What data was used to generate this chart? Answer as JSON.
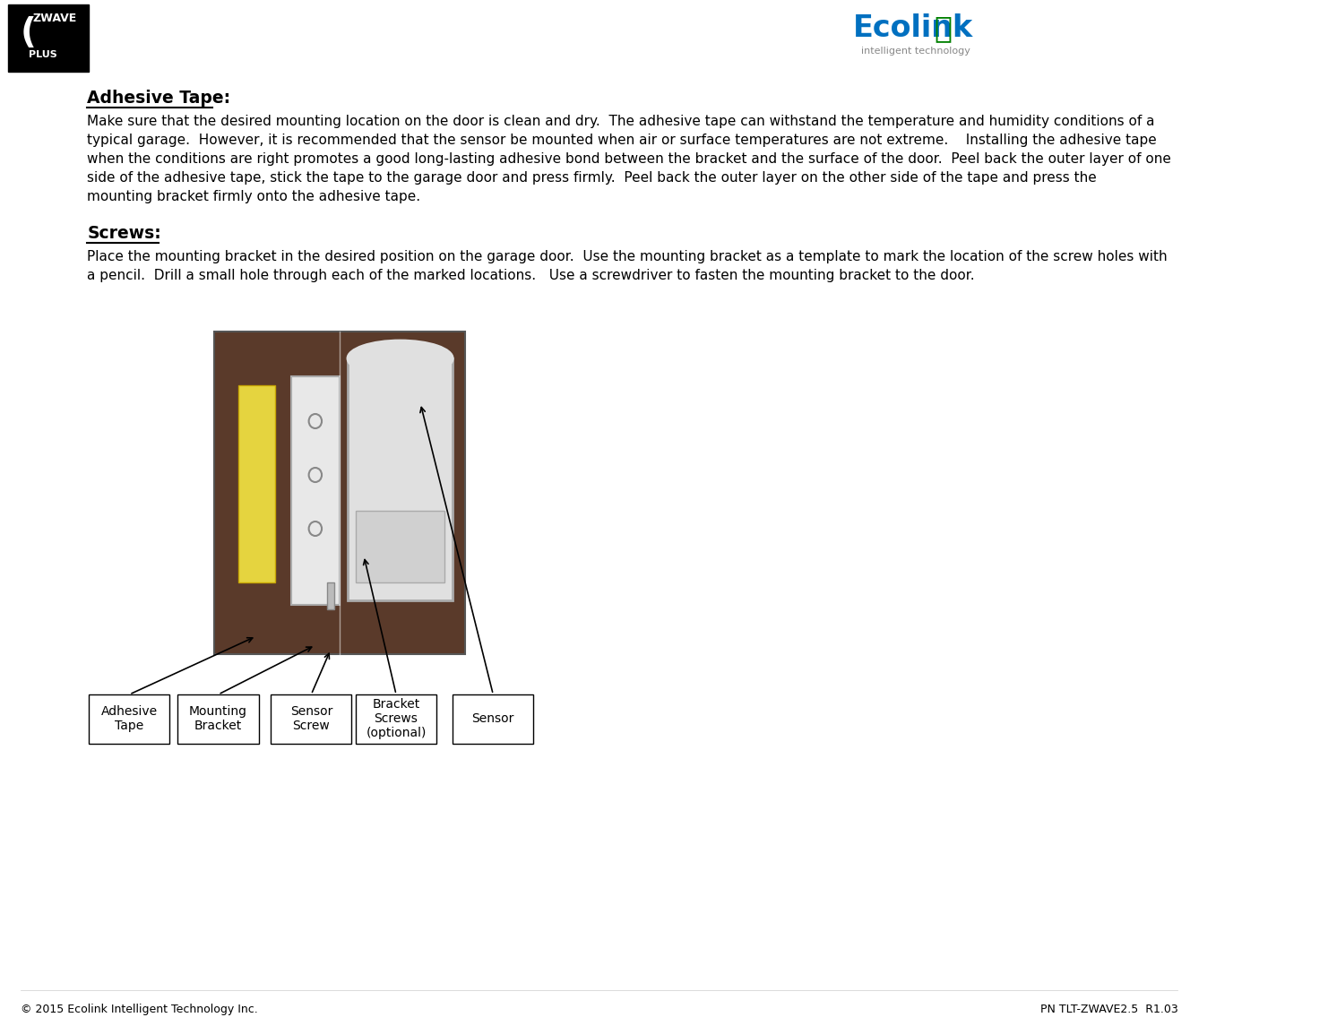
{
  "bg_color": "#ffffff",
  "title_adhesive": "Adhesive Tape:",
  "title_screws": "Screws:",
  "adhesive_body": "Make sure that the desired mounting location on the door is clean and dry.  The adhesive tape can withstand the temperature and humidity conditions of a typical garage.  However, it is recommended that the sensor be mounted when air or surface temperatures are not extreme.    Installing the adhesive tape when the conditions are right promotes a good long-lasting adhesive bond between the bracket and the surface of the door.  Peel back the outer layer of one side of the adhesive tape, stick the tape to the garage door and press firmly.  Peel back the outer layer on the other side of the tape and press the mounting bracket firmly onto the adhesive tape.",
  "screws_body": "Place the mounting bracket in the desired position on the garage door.  Use the mounting bracket as a template to mark the location of the screw holes with a pencil.  Drill a small hole through each of the marked locations.   Use a screwdriver to fasten the mounting bracket to the door.",
  "footer_left": "© 2015 Ecolink Intelligent Technology Inc.",
  "footer_right": "PN TLT-ZWAVE2.5  R1.03",
  "label_adhesive": "Adhesive\nTape",
  "label_mounting": "Mounting\nBracket",
  "label_sensor_screw": "Sensor\nScrew",
  "label_bracket_screws": "Bracket\nScrews\n(optional)",
  "label_sensor": "Sensor"
}
